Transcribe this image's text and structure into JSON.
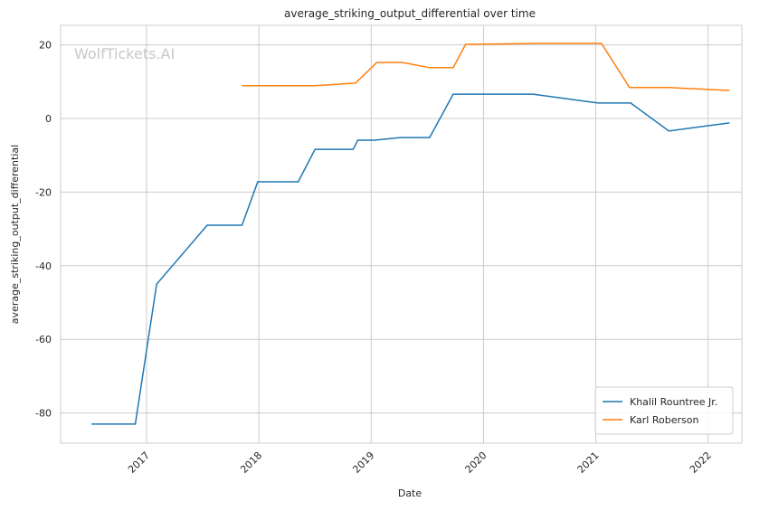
{
  "chart_data": {
    "type": "line",
    "title": "average_striking_output_differential over time",
    "xlabel": "Date",
    "ylabel": "average_striking_output_differential",
    "watermark": "WolfTickets.AI",
    "xlim": [
      2016.235,
      2022.3
    ],
    "xticks": [
      2017,
      2018,
      2019,
      2020,
      2021,
      2022
    ],
    "ylim": [
      -88.2,
      25.3
    ],
    "yticks": [
      -80,
      -60,
      -40,
      -20,
      0,
      20
    ],
    "grid": true,
    "legend": "lower right",
    "series": [
      {
        "name": "Khalil Rountree Jr.",
        "color": "#1f77b4",
        "x": [
          2016.51,
          2016.9,
          2017.09,
          2017.54,
          2017.85,
          2017.99,
          2018.35,
          2018.5,
          2018.84,
          2018.88,
          2019.03,
          2019.26,
          2019.52,
          2019.73,
          2020.44,
          2021.02,
          2021.31,
          2021.65,
          2022.19
        ],
        "values": [
          -83,
          -83,
          -45,
          -29,
          -29,
          -17.2,
          -17.2,
          -8.4,
          -8.4,
          -5.9,
          -5.9,
          -5.2,
          -5.2,
          6.6,
          6.6,
          4.2,
          4.2,
          -3.4,
          -1.2
        ]
      },
      {
        "name": "Karl Roberson",
        "color": "#ff7f0e",
        "x": [
          2017.85,
          2018.5,
          2018.86,
          2019.05,
          2019.28,
          2019.52,
          2019.73,
          2019.84,
          2020.49,
          2021.05,
          2021.3,
          2021.65,
          2022.19
        ],
        "values": [
          8.9,
          8.9,
          9.6,
          15.2,
          15.2,
          13.8,
          13.8,
          20.1,
          20.4,
          20.4,
          8.4,
          8.4,
          7.6
        ]
      }
    ]
  }
}
